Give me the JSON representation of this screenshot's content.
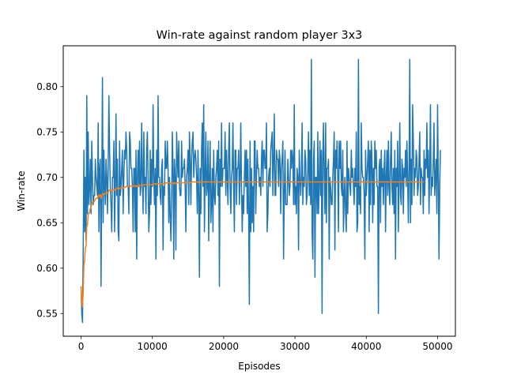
{
  "chart_data": {
    "type": "line",
    "title": "Win-rate against random player 3x3",
    "xlabel": "Episodes",
    "ylabel": "Win-rate",
    "xlim": [
      -2500,
      52500
    ],
    "ylim": [
      0.525,
      0.845
    ],
    "x_ticks": [
      0,
      10000,
      20000,
      30000,
      40000,
      50000
    ],
    "x_tick_labels": [
      "0",
      "10000",
      "20000",
      "30000",
      "40000",
      "50000"
    ],
    "y_ticks": [
      0.55,
      0.6,
      0.65,
      0.7,
      0.75,
      0.8
    ],
    "y_tick_labels": [
      "0.55",
      "0.60",
      "0.65",
      "0.70",
      "0.75",
      "0.80"
    ],
    "grid": false,
    "legend": "none",
    "x_start": 0,
    "x_step": 100,
    "series": [
      {
        "color": "#1f77b4",
        "values": [
          0.58,
          0.55,
          0.54,
          0.62,
          0.73,
          0.64,
          0.7,
          0.63,
          0.79,
          0.66,
          0.75,
          0.67,
          0.69,
          0.72,
          0.66,
          0.74,
          0.7,
          0.67,
          0.68,
          0.68,
          0.72,
          0.7,
          0.69,
          0.68,
          0.76,
          0.64,
          0.71,
          0.72,
          0.58,
          0.69,
          0.81,
          0.65,
          0.73,
          0.69,
          0.67,
          0.72,
          0.7,
          0.66,
          0.71,
          0.79,
          0.73,
          0.69,
          0.67,
          0.64,
          0.7,
          0.7,
          0.74,
          0.64,
          0.69,
          0.77,
          0.68,
          0.72,
          0.64,
          0.63,
          0.74,
          0.68,
          0.69,
          0.71,
          0.73,
          0.66,
          0.7,
          0.73,
          0.72,
          0.75,
          0.73,
          0.69,
          0.69,
          0.66,
          0.75,
          0.74,
          0.71,
          0.71,
          0.69,
          0.64,
          0.71,
          0.71,
          0.64,
          0.73,
          0.61,
          0.7,
          0.73,
          0.69,
          0.74,
          0.68,
          0.69,
          0.76,
          0.7,
          0.66,
          0.75,
          0.69,
          0.7,
          0.66,
          0.73,
          0.75,
          0.7,
          0.64,
          0.66,
          0.73,
          0.67,
          0.72,
          0.69,
          0.78,
          0.7,
          0.67,
          0.71,
          0.61,
          0.73,
          0.68,
          0.79,
          0.7,
          0.7,
          0.68,
          0.67,
          0.71,
          0.72,
          0.62,
          0.69,
          0.68,
          0.74,
          0.71,
          0.71,
          0.74,
          0.71,
          0.65,
          0.7,
          0.66,
          0.63,
          0.67,
          0.75,
          0.71,
          0.61,
          0.72,
          0.7,
          0.62,
          0.75,
          0.72,
          0.7,
          0.74,
          0.69,
          0.68,
          0.68,
          0.74,
          0.7,
          0.71,
          0.71,
          0.72,
          0.69,
          0.64,
          0.7,
          0.71,
          0.73,
          0.67,
          0.75,
          0.72,
          0.67,
          0.72,
          0.74,
          0.75,
          0.7,
          0.72,
          0.73,
          0.72,
          0.7,
          0.66,
          0.73,
          0.68,
          0.59,
          0.71,
          0.66,
          0.73,
          0.76,
          0.69,
          0.78,
          0.64,
          0.7,
          0.75,
          0.68,
          0.69,
          0.74,
          0.63,
          0.7,
          0.74,
          0.65,
          0.67,
          0.71,
          0.64,
          0.73,
          0.68,
          0.67,
          0.7,
          0.71,
          0.73,
          0.68,
          0.74,
          0.58,
          0.72,
          0.69,
          0.76,
          0.69,
          0.71,
          0.71,
          0.71,
          0.75,
          0.68,
          0.73,
          0.7,
          0.67,
          0.73,
          0.76,
          0.69,
          0.66,
          0.7,
          0.71,
          0.76,
          0.69,
          0.64,
          0.73,
          0.73,
          0.67,
          0.71,
          0.71,
          0.73,
          0.67,
          0.7,
          0.76,
          0.69,
          0.64,
          0.68,
          0.66,
          0.7,
          0.73,
          0.69,
          0.73,
          0.66,
          0.72,
          0.66,
          0.56,
          0.74,
          0.64,
          0.71,
          0.65,
          0.69,
          0.64,
          0.74,
          0.74,
          0.66,
          0.7,
          0.73,
          0.71,
          0.71,
          0.69,
          0.7,
          0.68,
          0.72,
          0.74,
          0.69,
          0.73,
          0.73,
          0.71,
          0.71,
          0.76,
          0.64,
          0.66,
          0.7,
          0.71,
          0.69,
          0.73,
          0.74,
          0.75,
          0.68,
          0.72,
          0.77,
          0.68,
          0.68,
          0.73,
          0.72,
          0.72,
          0.69,
          0.73,
          0.72,
          0.66,
          0.71,
          0.72,
          0.74,
          0.61,
          0.68,
          0.73,
          0.67,
          0.67,
          0.67,
          0.72,
          0.7,
          0.68,
          0.69,
          0.73,
          0.71,
          0.73,
          0.72,
          0.67,
          0.78,
          0.67,
          0.69,
          0.66,
          0.71,
          0.7,
          0.62,
          0.73,
          0.7,
          0.68,
          0.7,
          0.76,
          0.67,
          0.7,
          0.69,
          0.73,
          0.72,
          0.67,
          0.68,
          0.71,
          0.75,
          0.68,
          0.73,
          0.67,
          0.83,
          0.64,
          0.61,
          0.72,
          0.74,
          0.59,
          0.7,
          0.7,
          0.66,
          0.75,
          0.66,
          0.69,
          0.74,
          0.68,
          0.73,
          0.55,
          0.72,
          0.76,
          0.7,
          0.66,
          0.76,
          0.65,
          0.71,
          0.71,
          0.72,
          0.61,
          0.7,
          0.69,
          0.67,
          0.67,
          0.7,
          0.72,
          0.75,
          0.62,
          0.73,
          0.71,
          0.74,
          0.7,
          0.64,
          0.74,
          0.71,
          0.74,
          0.69,
          0.68,
          0.73,
          0.64,
          0.68,
          0.7,
          0.66,
          0.64,
          0.74,
          0.66,
          0.71,
          0.7,
          0.69,
          0.68,
          0.73,
          0.7,
          0.71,
          0.69,
          0.67,
          0.71,
          0.69,
          0.75,
          0.64,
          0.65,
          0.83,
          0.67,
          0.69,
          0.66,
          0.76,
          0.71,
          0.7,
          0.7,
          0.68,
          0.61,
          0.73,
          0.68,
          0.7,
          0.72,
          0.74,
          0.64,
          0.73,
          0.67,
          0.74,
          0.72,
          0.65,
          0.71,
          0.67,
          0.74,
          0.71,
          0.73,
          0.69,
          0.69,
          0.55,
          0.71,
          0.72,
          0.65,
          0.73,
          0.69,
          0.71,
          0.67,
          0.71,
          0.73,
          0.64,
          0.7,
          0.73,
          0.68,
          0.74,
          0.69,
          0.67,
          0.72,
          0.75,
          0.69,
          0.67,
          0.71,
          0.66,
          0.73,
          0.61,
          0.71,
          0.69,
          0.74,
          0.64,
          0.7,
          0.76,
          0.68,
          0.67,
          0.72,
          0.71,
          0.66,
          0.71,
          0.7,
          0.73,
          0.69,
          0.74,
          0.7,
          0.65,
          0.71,
          0.83,
          0.65,
          0.72,
          0.67,
          0.78,
          0.74,
          0.68,
          0.71,
          0.7,
          0.73,
          0.72,
          0.68,
          0.69,
          0.72,
          0.75,
          0.67,
          0.71,
          0.7,
          0.7,
          0.66,
          0.73,
          0.68,
          0.72,
          0.71,
          0.76,
          0.7,
          0.73,
          0.66,
          0.71,
          0.78,
          0.68,
          0.7,
          0.69,
          0.72,
          0.76,
          0.68,
          0.7,
          0.72,
          0.66,
          0.78,
          0.7,
          0.61,
          0.69,
          0.73
        ]
      },
      {
        "color": "#ff7f0e",
        "values": [
          0.58,
          0.565,
          0.557,
          0.573,
          0.604,
          0.608,
          0.623,
          0.624,
          0.646,
          0.648,
          0.659,
          0.66,
          0.662,
          0.666,
          0.666,
          0.671,
          0.673,
          0.673,
          0.673,
          0.674,
          0.676,
          0.677,
          0.677,
          0.677,
          0.68,
          0.679,
          0.68,
          0.681,
          0.677,
          0.678,
          0.682,
          0.681,
          0.682,
          0.682,
          0.682,
          0.683,
          0.683,
          0.683,
          0.683,
          0.686,
          0.686,
          0.686,
          0.686,
          0.685,
          0.686,
          0.686,
          0.687,
          0.686,
          0.686,
          0.688,
          0.688,
          0.688,
          0.687,
          0.687,
          0.688,
          0.688,
          0.688,
          0.688,
          0.689,
          0.688,
          0.689,
          0.689,
          0.689,
          0.69,
          0.69,
          0.69,
          0.69,
          0.69,
          0.69,
          0.69,
          0.691,
          0.691,
          0.691,
          0.69,
          0.691,
          0.691,
          0.69,
          0.691,
          0.69,
          0.69,
          0.691,
          0.691,
          0.691,
          0.691,
          0.691,
          0.692,
          0.692,
          0.691,
          0.692,
          0.692,
          0.692,
          0.692,
          0.692,
          0.692,
          0.692,
          0.692,
          0.692,
          0.692,
          0.692,
          0.692,
          0.692,
          0.693,
          0.693,
          0.693,
          0.693,
          0.692,
          0.693,
          0.693,
          0.693,
          0.693,
          0.693,
          0.693,
          0.693,
          0.693,
          0.693,
          0.693,
          0.693,
          0.693,
          0.693,
          0.694,
          0.694,
          0.694,
          0.694,
          0.694,
          0.694,
          0.694,
          0.693,
          0.693,
          0.694,
          0.694,
          0.693,
          0.694,
          0.694,
          0.693,
          0.694,
          0.694,
          0.694,
          0.694,
          0.694,
          0.694,
          0.694,
          0.694,
          0.694,
          0.694,
          0.694,
          0.694,
          0.694,
          0.694,
          0.694,
          0.694,
          0.694,
          0.694,
          0.694,
          0.694,
          0.694,
          0.695,
          0.695,
          0.695,
          0.695,
          0.695,
          0.695,
          0.695,
          0.695,
          0.695,
          0.695,
          0.694,
          0.694,
          0.695,
          0.695,
          0.695,
          0.695,
          0.695,
          0.695,
          0.695,
          0.695,
          0.695,
          0.695,
          0.695,
          0.695,
          0.695,
          0.695,
          0.695,
          0.695,
          0.695,
          0.695,
          0.695,
          0.695,
          0.695,
          0.695,
          0.695,
          0.695,
          0.695,
          0.695,
          0.695,
          0.695,
          0.695,
          0.695,
          0.695,
          0.695,
          0.695,
          0.695,
          0.695,
          0.695,
          0.695,
          0.695,
          0.695,
          0.695,
          0.695,
          0.695,
          0.695,
          0.695,
          0.695,
          0.695,
          0.695,
          0.695,
          0.695,
          0.695,
          0.695,
          0.695,
          0.695,
          0.695,
          0.695,
          0.695,
          0.695,
          0.695,
          0.695,
          0.695,
          0.695,
          0.695,
          0.695,
          0.695,
          0.695,
          0.695,
          0.695,
          0.695,
          0.695,
          0.695,
          0.695,
          0.695,
          0.695,
          0.695,
          0.695,
          0.695,
          0.695,
          0.695,
          0.695,
          0.695,
          0.695,
          0.695,
          0.695,
          0.695,
          0.695,
          0.695,
          0.695,
          0.695,
          0.695,
          0.695,
          0.695,
          0.695,
          0.695,
          0.695,
          0.695,
          0.695,
          0.695,
          0.695,
          0.695,
          0.695,
          0.695,
          0.695,
          0.695,
          0.695,
          0.695,
          0.695,
          0.695,
          0.695,
          0.695,
          0.695,
          0.695,
          0.695,
          0.695,
          0.695,
          0.695,
          0.695,
          0.695,
          0.695,
          0.695,
          0.695,
          0.695,
          0.695,
          0.695,
          0.695,
          0.695,
          0.695,
          0.695,
          0.695,
          0.695,
          0.695,
          0.695,
          0.695,
          0.695,
          0.695,
          0.695,
          0.695,
          0.695,
          0.695,
          0.695,
          0.695,
          0.695,
          0.695,
          0.695,
          0.695,
          0.695,
          0.695,
          0.695,
          0.695,
          0.695,
          0.695,
          0.695,
          0.695,
          0.695,
          0.695,
          0.695,
          0.695,
          0.695,
          0.695,
          0.695,
          0.695,
          0.695,
          0.695,
          0.695,
          0.695,
          0.695,
          0.695,
          0.695,
          0.695,
          0.695,
          0.695,
          0.695,
          0.695,
          0.695,
          0.695,
          0.695,
          0.695,
          0.695,
          0.695,
          0.695,
          0.695,
          0.695,
          0.695,
          0.695,
          0.695,
          0.695,
          0.695,
          0.695,
          0.695,
          0.695,
          0.695,
          0.695,
          0.695,
          0.695,
          0.695,
          0.695,
          0.695,
          0.695,
          0.695,
          0.695,
          0.695,
          0.695,
          0.695,
          0.695,
          0.695,
          0.695,
          0.695,
          0.695,
          0.695,
          0.695,
          0.695,
          0.695,
          0.695,
          0.695,
          0.695,
          0.695,
          0.695,
          0.695,
          0.695,
          0.695,
          0.695,
          0.695,
          0.695,
          0.695,
          0.695,
          0.695,
          0.695,
          0.695,
          0.695,
          0.695,
          0.695,
          0.695,
          0.695,
          0.695,
          0.695,
          0.695,
          0.695,
          0.695,
          0.695,
          0.695,
          0.695,
          0.695,
          0.695,
          0.695,
          0.695,
          0.695,
          0.695,
          0.695,
          0.695,
          0.695,
          0.695,
          0.695,
          0.695,
          0.695,
          0.695,
          0.695,
          0.695,
          0.695,
          0.695,
          0.695,
          0.695,
          0.695,
          0.695,
          0.695,
          0.695,
          0.695,
          0.695,
          0.695,
          0.695,
          0.695,
          0.695,
          0.695,
          0.695,
          0.695,
          0.695,
          0.695,
          0.695,
          0.695,
          0.695,
          0.695,
          0.695,
          0.695,
          0.695,
          0.695,
          0.695,
          0.695,
          0.695,
          0.695,
          0.695,
          0.695,
          0.695,
          0.695,
          0.695,
          0.695,
          0.695,
          0.695,
          0.695,
          0.695,
          0.695,
          0.695,
          0.695,
          0.695,
          0.695,
          0.695,
          0.695,
          0.695,
          0.695,
          0.695,
          0.695,
          0.695,
          0.695,
          0.695,
          0.695,
          0.695,
          0.695,
          0.695
        ]
      }
    ]
  }
}
